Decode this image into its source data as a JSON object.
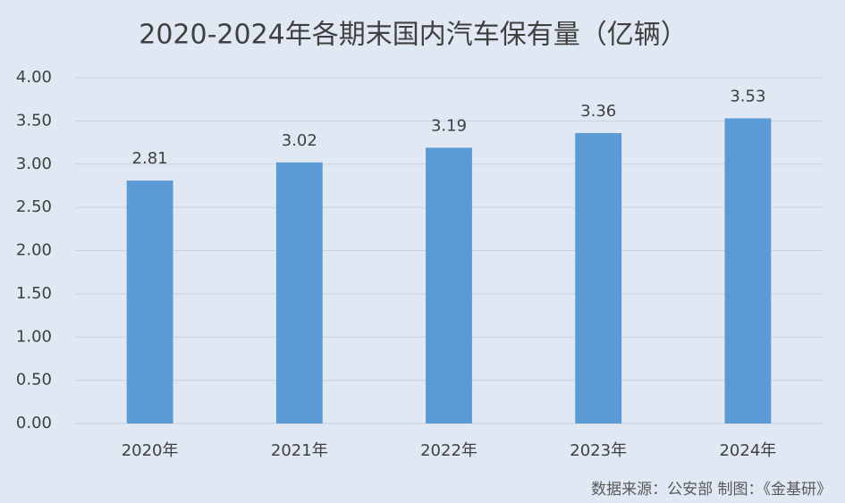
{
  "chart_data": {
    "type": "bar",
    "title": "2020-2024年各期末国内汽车保有量（亿辆）",
    "categories": [
      "2020年",
      "2021年",
      "2022年",
      "2023年",
      "2024年"
    ],
    "values": [
      2.81,
      3.02,
      3.19,
      3.36,
      3.53
    ],
    "color": "#5b9bd5",
    "ylim": [
      0,
      4
    ],
    "yticks": [
      {
        "value": 0,
        "label": "0.00"
      },
      {
        "value": 0.5,
        "label": "0.50"
      },
      {
        "value": 1,
        "label": "1.00"
      },
      {
        "value": 1.5,
        "label": "1.50"
      },
      {
        "value": 2,
        "label": "2.00"
      },
      {
        "value": 2.5,
        "label": "2.50"
      },
      {
        "value": 3,
        "label": "3.00"
      },
      {
        "value": 3.5,
        "label": "3.50"
      },
      {
        "value": 4,
        "label": "4.00"
      }
    ],
    "grid": true,
    "source": "数据来源：公安部  制图：《金基研》"
  }
}
